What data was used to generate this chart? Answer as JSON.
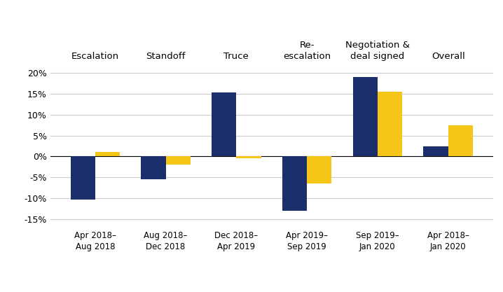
{
  "phases": [
    "Escalation",
    "Standoff",
    "Truce",
    "Re-\nescalation",
    "Negotiation &\ndeal signed",
    "Overall"
  ],
  "x_labels": [
    "Apr 2018–\nAug 2018",
    "Aug 2018–\nDec 2018",
    "Dec 2018–\nApr 2019",
    "Apr 2019–\nSep 2019",
    "Sep 2019–\nJan 2020",
    "Apr 2018–\nJan 2020"
  ],
  "china_values": [
    -10.2,
    -5.5,
    15.2,
    -13.0,
    19.0,
    2.5
  ],
  "japan_values": [
    1.0,
    -2.0,
    -0.5,
    -6.5,
    15.5,
    7.5
  ],
  "china_color": "#1a2f6b",
  "japan_color": "#f5c518",
  "ylim": [
    -17,
    22
  ],
  "yticks": [
    -15,
    -10,
    -5,
    0,
    5,
    10,
    15,
    20
  ],
  "ytick_labels": [
    "-15%",
    "-10%",
    "-5%",
    "0%",
    "5%",
    "10%",
    "15%",
    "20%"
  ],
  "bar_width": 0.35,
  "background_color": "#ffffff",
  "grid_color": "#cccccc"
}
